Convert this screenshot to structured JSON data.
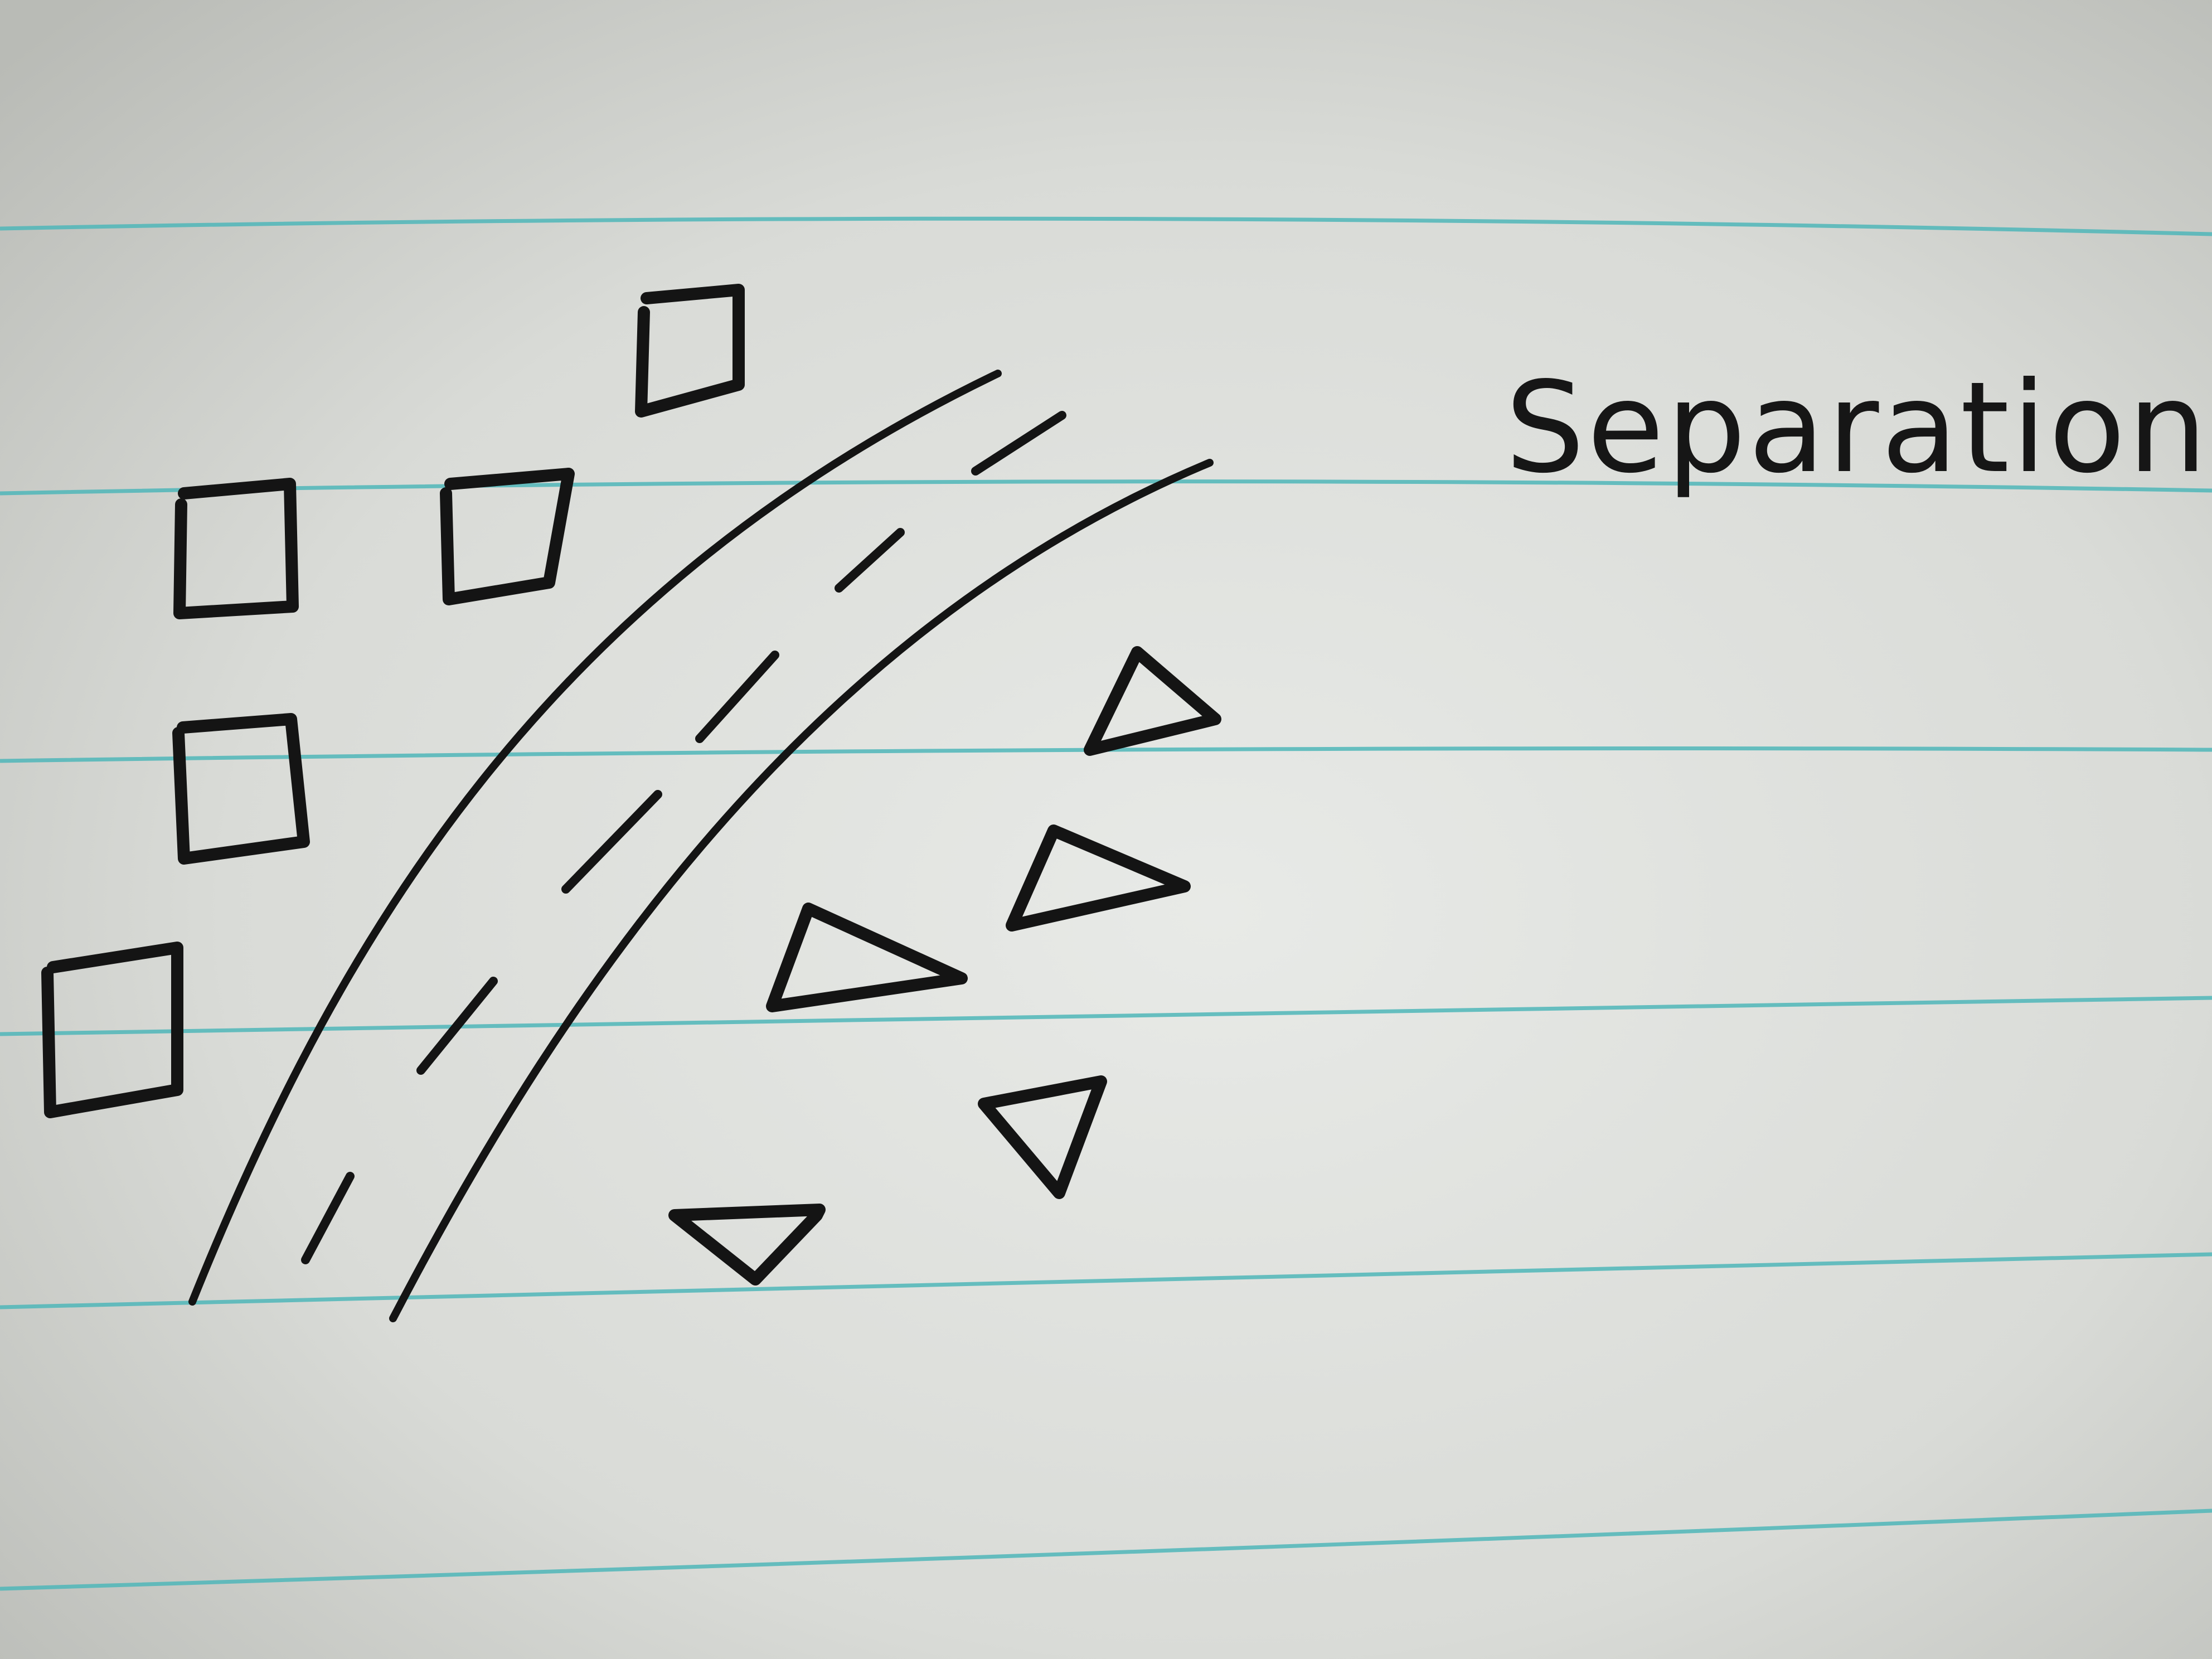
{
  "diagram": {
    "label": "Separation",
    "class_a_marker": "square",
    "class_b_marker": "triangle",
    "ink_color": "#141414",
    "rule_color": "#4fb6b8",
    "paper_color": "#dcdedb"
  }
}
